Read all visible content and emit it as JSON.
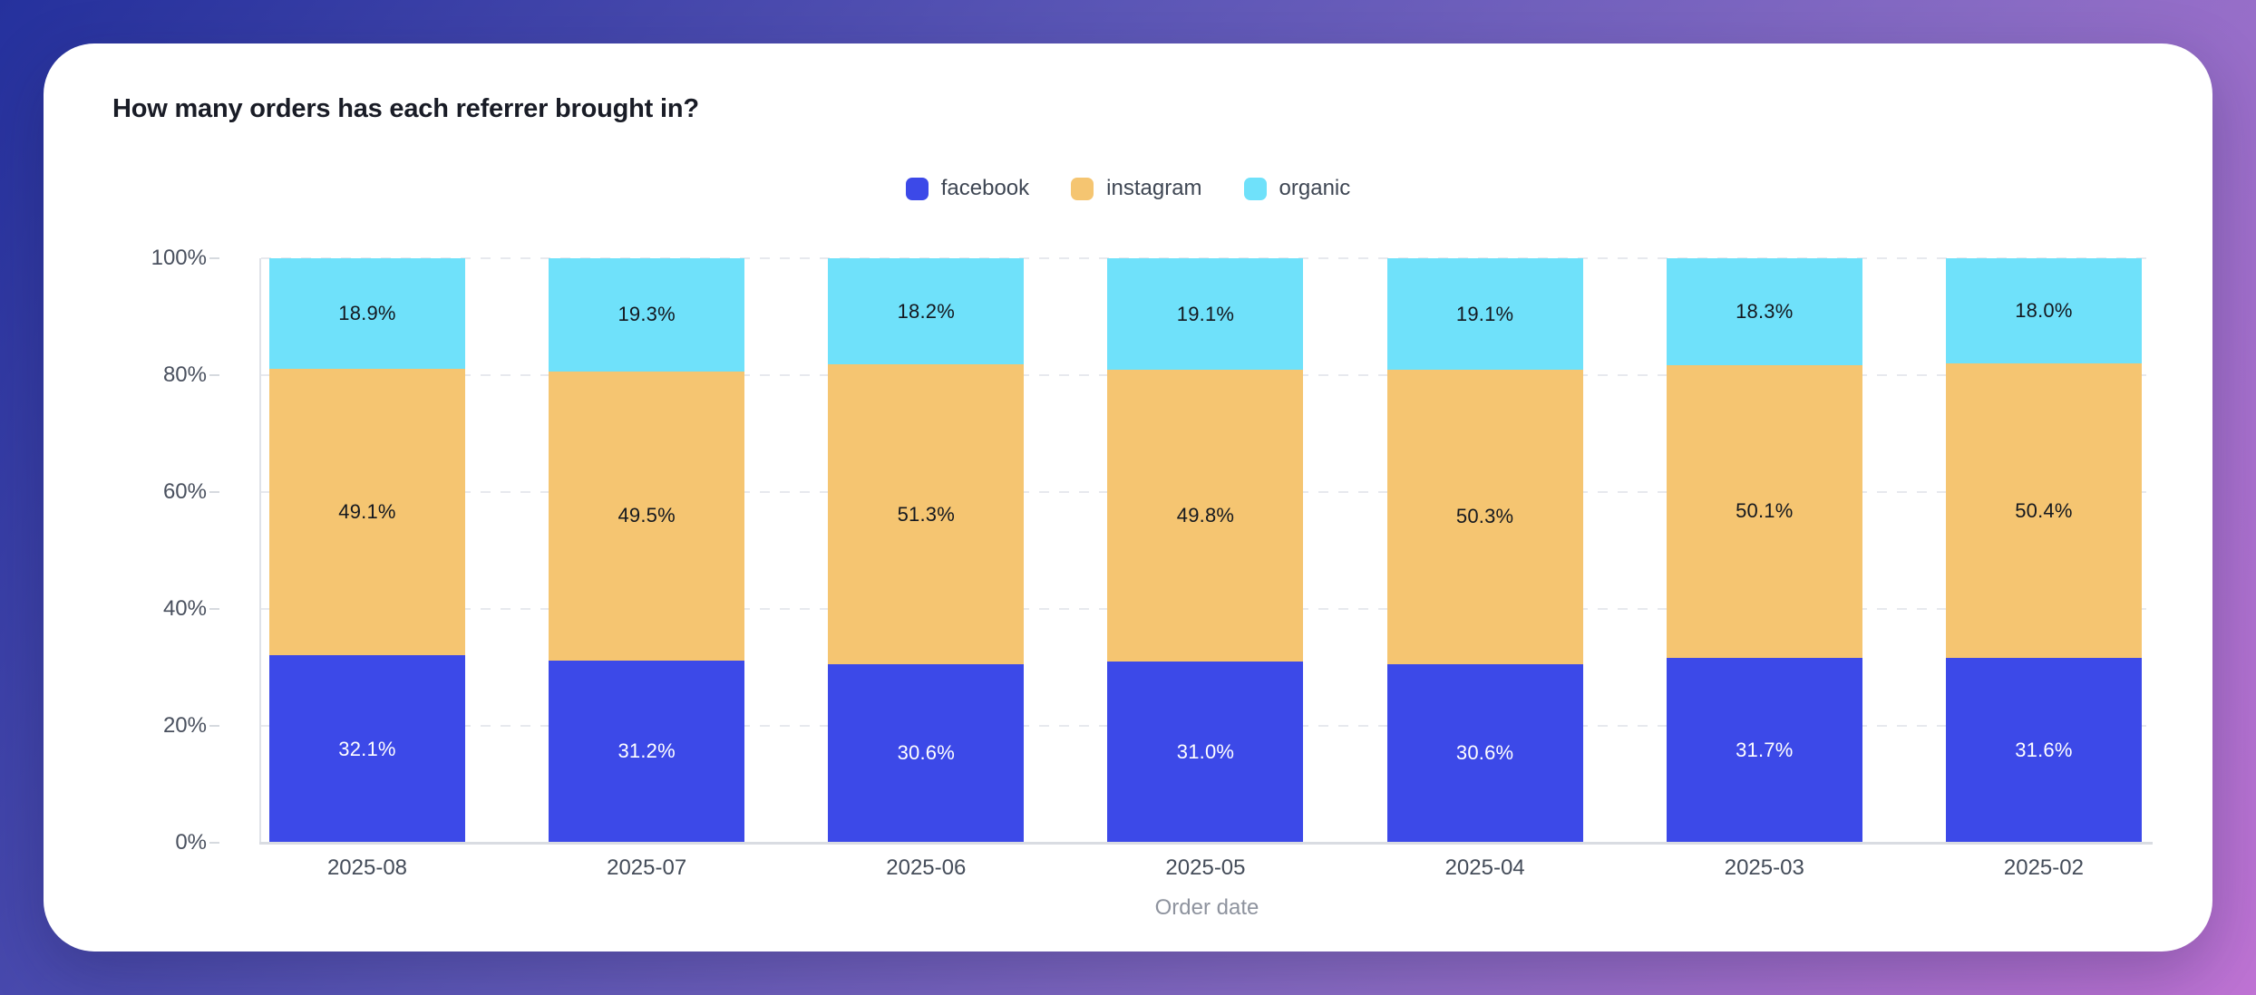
{
  "page": {
    "background_gradient": [
      "#25319D",
      "#5C57B7",
      "#8A6CC5",
      "#BF73D4"
    ]
  },
  "card": {
    "title": "How many orders has each referrer brought in?",
    "background": "#FFFFFF"
  },
  "chart_data": {
    "type": "bar",
    "stacked": true,
    "orientation": "vertical",
    "title": "How many orders has each referrer brought in?",
    "xlabel": "Order date",
    "ylabel": "",
    "ylim": [
      0,
      100
    ],
    "y_ticks": [
      "0%",
      "20%",
      "40%",
      "60%",
      "80%",
      "100%"
    ],
    "grid": "dashed-horizontal",
    "legend_position": "top-center",
    "categories": [
      "2025-08",
      "2025-07",
      "2025-06",
      "2025-05",
      "2025-04",
      "2025-03",
      "2025-02"
    ],
    "series": [
      {
        "name": "facebook",
        "color": "#3C49E8",
        "label_color": "#FFFFFF",
        "values": [
          32.1,
          31.2,
          30.6,
          31.0,
          30.6,
          31.7,
          31.6
        ]
      },
      {
        "name": "instagram",
        "color": "#F5C571",
        "label_color": "#14181F",
        "values": [
          49.1,
          49.5,
          51.3,
          49.8,
          50.3,
          50.1,
          50.4
        ]
      },
      {
        "name": "organic",
        "color": "#6FE1FA",
        "label_color": "#14181F",
        "values": [
          18.9,
          19.3,
          18.2,
          19.1,
          19.1,
          18.3,
          18.0
        ]
      }
    ],
    "value_label_format": "one-decimal-percent"
  }
}
